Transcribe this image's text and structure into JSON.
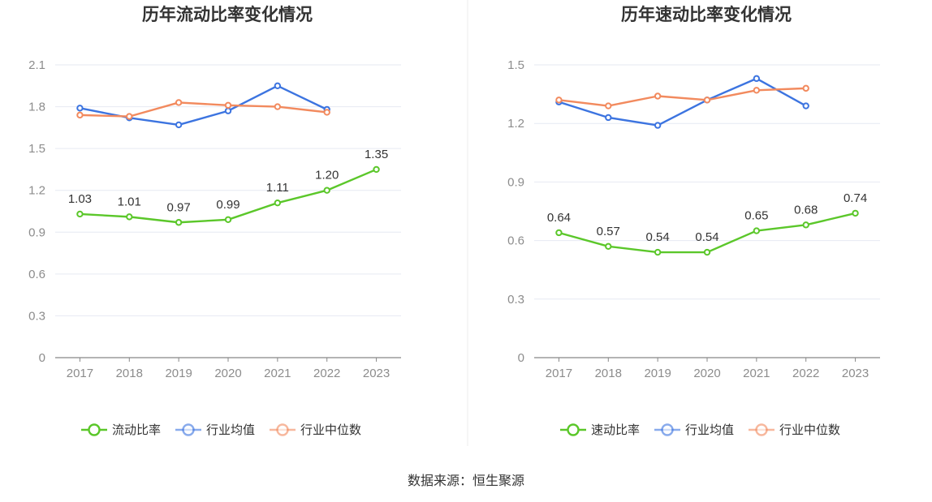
{
  "source": "数据来源：恒生聚源",
  "colors": {
    "primary": "#5bc72a",
    "average": "#3c74e0",
    "median": "#f28a5e",
    "grid": "#e6e9f2",
    "axis": "#888888"
  },
  "chart_data": [
    {
      "type": "line",
      "title": "历年流动比率变化情况",
      "categories": [
        "2017",
        "2018",
        "2019",
        "2020",
        "2021",
        "2022",
        "2023"
      ],
      "ylim": [
        0,
        2.1
      ],
      "yticks": [
        "0",
        "0.3",
        "0.6",
        "0.9",
        "1.2",
        "1.5",
        "1.8",
        "2.1"
      ],
      "grid": true,
      "legend_position": "bottom",
      "series": [
        {
          "name": "流动比率",
          "values": [
            1.03,
            1.01,
            0.97,
            0.99,
            1.11,
            1.2,
            1.35
          ],
          "labels": [
            "1.03",
            "1.01",
            "0.97",
            "0.99",
            "1.11",
            "1.20",
            "1.35"
          ],
          "color": "#5bc72a"
        },
        {
          "name": "行业均值",
          "values": [
            1.79,
            1.72,
            1.67,
            1.77,
            1.95,
            1.78,
            null
          ],
          "color": "#3c74e0"
        },
        {
          "name": "行业中位数",
          "values": [
            1.74,
            1.73,
            1.83,
            1.81,
            1.8,
            1.76,
            null
          ],
          "color": "#f28a5e"
        }
      ]
    },
    {
      "type": "line",
      "title": "历年速动比率变化情况",
      "categories": [
        "2017",
        "2018",
        "2019",
        "2020",
        "2021",
        "2022",
        "2023"
      ],
      "ylim": [
        0,
        1.5
      ],
      "yticks": [
        "0",
        "0.3",
        "0.6",
        "0.9",
        "1.2",
        "1.5"
      ],
      "grid": true,
      "legend_position": "bottom",
      "series": [
        {
          "name": "速动比率",
          "values": [
            0.64,
            0.57,
            0.54,
            0.54,
            0.65,
            0.68,
            0.74
          ],
          "labels": [
            "0.64",
            "0.57",
            "0.54",
            "0.54",
            "0.65",
            "0.68",
            "0.74"
          ],
          "color": "#5bc72a"
        },
        {
          "name": "行业均值",
          "values": [
            1.31,
            1.23,
            1.19,
            1.32,
            1.43,
            1.29,
            null
          ],
          "color": "#3c74e0"
        },
        {
          "name": "行业中位数",
          "values": [
            1.32,
            1.29,
            1.34,
            1.32,
            1.37,
            1.38,
            null
          ],
          "color": "#f28a5e"
        }
      ]
    }
  ]
}
